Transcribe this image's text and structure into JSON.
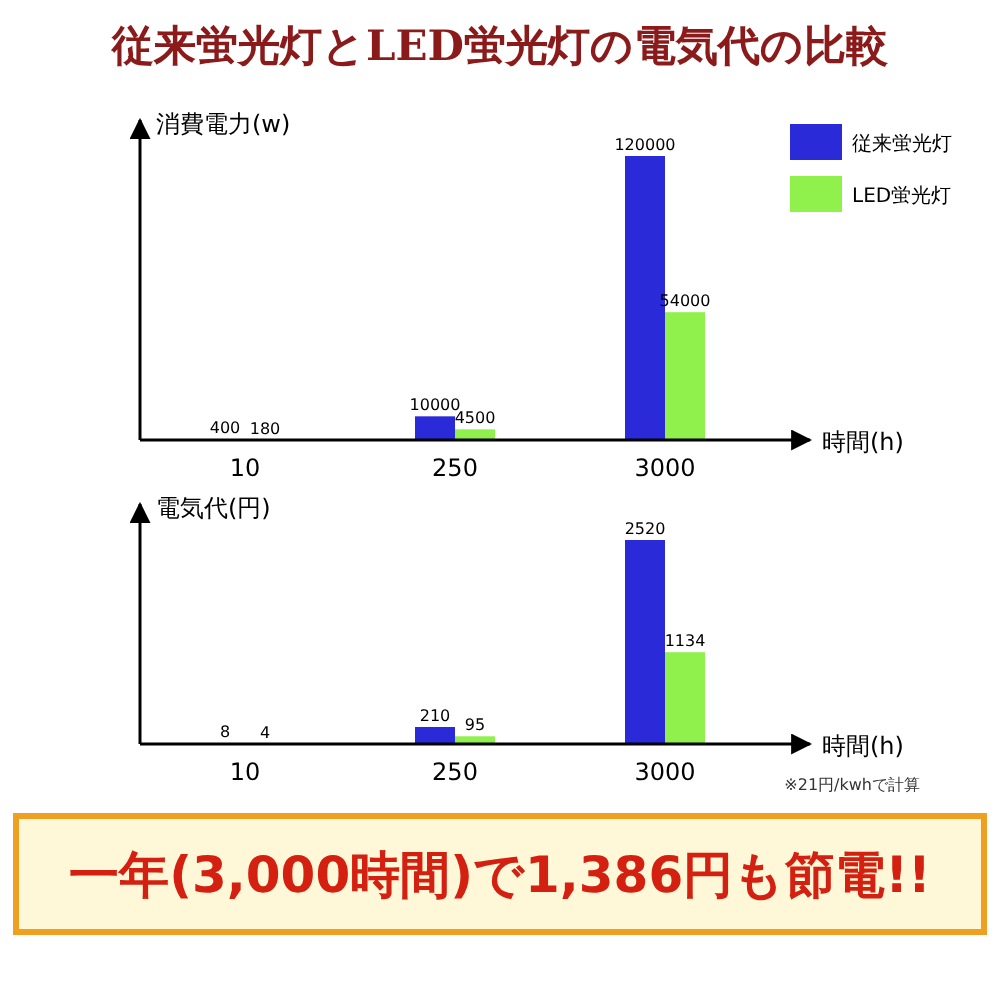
{
  "chart_data": [
    {
      "type": "bar",
      "title": "従来蛍光灯とLED蛍光灯の電気代の比較",
      "ylabel": "消費電力(w)",
      "xlabel": "時間(h)",
      "categories": [
        "10",
        "250",
        "3000"
      ],
      "data_labels": true,
      "legend": "top right",
      "series": [
        {
          "name": "従来蛍光灯",
          "color": "#2a2ad8",
          "values": [
            400,
            10000,
            120000
          ]
        },
        {
          "name": "LED蛍光灯",
          "color": "#90f04c",
          "values": [
            180,
            4500,
            54000
          ]
        }
      ]
    },
    {
      "type": "bar",
      "ylabel": "電気代(円)",
      "xlabel": "時間(h)",
      "categories": [
        "10",
        "250",
        "3000"
      ],
      "data_labels": true,
      "annotations": [
        "※21円/kwhで計算",
        "一年(3,000時間)で1,386円も節電!!"
      ],
      "series": [
        {
          "color": "#2a2ad8",
          "values": [
            8,
            210,
            2520
          ]
        },
        {
          "color": "#90f04c",
          "values": [
            4,
            95,
            1134
          ]
        }
      ]
    }
  ]
}
